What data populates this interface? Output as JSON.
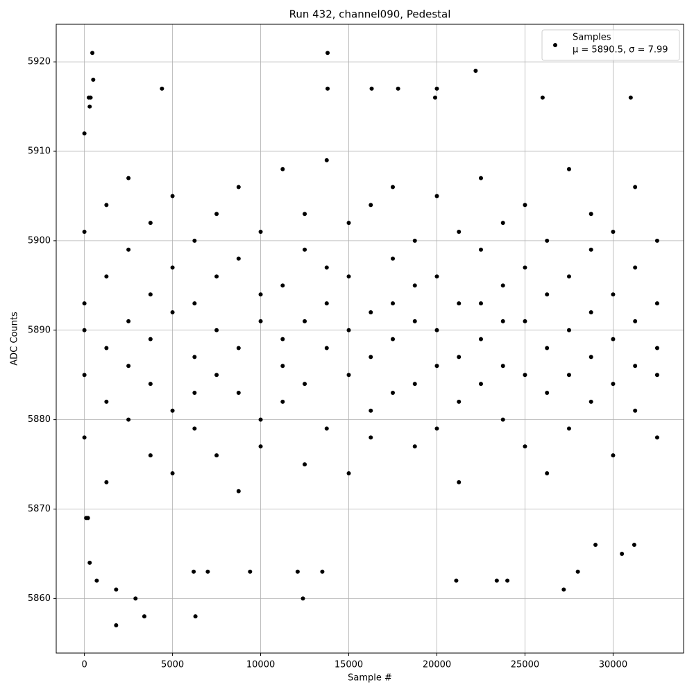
{
  "chart_data": {
    "type": "scatter",
    "title": "Run 432, channel090, Pedestal",
    "x_label": "Sample #",
    "y_label": "ADC Counts",
    "xlim": [
      -1600,
      34000
    ],
    "ylim": [
      5853.9,
      5924.2
    ],
    "xticks": [
      0,
      5000,
      10000,
      15000,
      20000,
      25000,
      30000
    ],
    "yticks": [
      5860,
      5870,
      5880,
      5890,
      5900,
      5910,
      5920
    ],
    "grid": true,
    "legend_position": "upper right",
    "stats_label": "μ = 5890.5, σ = 7.99",
    "series": [
      {
        "name": "Samples",
        "color": "#000000",
        "x": [
          0,
          0,
          0,
          0,
          0,
          1250,
          1250,
          1250,
          1250,
          1250,
          2500,
          2500,
          2500,
          2500,
          2500,
          3750,
          3750,
          3750,
          3750,
          3750,
          5000,
          5000,
          5000,
          5000,
          5000,
          6250,
          6250,
          6250,
          6250,
          6250,
          7500,
          7500,
          7500,
          7500,
          7500,
          8750,
          8750,
          8750,
          8750,
          8750,
          10000,
          10000,
          10000,
          10000,
          10000,
          11250,
          11250,
          11250,
          11250,
          11250,
          12500,
          12500,
          12500,
          12500,
          12500,
          13750,
          13750,
          13750,
          13750,
          13750,
          15000,
          15000,
          15000,
          15000,
          15000,
          16250,
          16250,
          16250,
          16250,
          16250,
          17500,
          17500,
          17500,
          17500,
          17500,
          18750,
          18750,
          18750,
          18750,
          18750,
          20000,
          20000,
          20000,
          20000,
          20000,
          21250,
          21250,
          21250,
          21250,
          21250,
          22500,
          22500,
          22500,
          22500,
          22500,
          23750,
          23750,
          23750,
          23750,
          23750,
          25000,
          25000,
          25000,
          25000,
          25000,
          26250,
          26250,
          26250,
          26250,
          26250,
          27500,
          27500,
          27500,
          27500,
          27500,
          28750,
          28750,
          28750,
          28750,
          28750,
          30000,
          30000,
          30000,
          30000,
          30000,
          31250,
          31250,
          31250,
          31250,
          31250,
          32500,
          32500,
          32500,
          32500,
          32500,
          0,
          100,
          200,
          250,
          300,
          350,
          300,
          450,
          500,
          700,
          1800,
          1800,
          2900,
          3400,
          4400,
          6300,
          6200,
          7000,
          9400,
          12400,
          12100,
          13500,
          13800,
          13800,
          16300,
          17800,
          21100,
          22200,
          23400,
          24000,
          27200,
          28000,
          26000,
          31000,
          20000,
          19900,
          29000,
          30500,
          31200
        ],
        "values": [
          5885,
          5893,
          5901,
          5878,
          5890,
          5888,
          5896,
          5873,
          5904,
          5882,
          5891,
          5880,
          5899,
          5886,
          5907,
          5884,
          5894,
          5876,
          5902,
          5889,
          5892,
          5881,
          5897,
          5874,
          5905,
          5887,
          5900,
          5879,
          5893,
          5883,
          5890,
          5876,
          5903,
          5885,
          5896,
          5883,
          5898,
          5888,
          5906,
          5872,
          5894,
          5880,
          5891,
          5901,
          5877,
          5886,
          5895,
          5882,
          5908,
          5889,
          5891,
          5875,
          5899,
          5884,
          5903,
          5888,
          5897,
          5879,
          5893,
          5909,
          5885,
          5902,
          5890,
          5874,
          5896,
          5892,
          5881,
          5904,
          5887,
          5878,
          5889,
          5898,
          5883,
          5906,
          5893,
          5884,
          5891,
          5900,
          5877,
          5895,
          5890,
          5879,
          5896,
          5886,
          5905,
          5887,
          5901,
          5882,
          5893,
          5873,
          5893,
          5884,
          5899,
          5889,
          5907,
          5886,
          5895,
          5880,
          5902,
          5891,
          5891,
          5877,
          5897,
          5885,
          5904,
          5888,
          5900,
          5883,
          5894,
          5874,
          5885,
          5896,
          5890,
          5879,
          5908,
          5892,
          5882,
          5899,
          5887,
          5903,
          5889,
          5876,
          5894,
          5901,
          5884,
          5886,
          5897,
          5881,
          5891,
          5906,
          5893,
          5878,
          5888,
          5900,
          5885,
          5912,
          5869,
          5869,
          5916,
          5915,
          5916,
          5864,
          5921,
          5918,
          5862,
          5857,
          5861,
          5860,
          5858,
          5917,
          5858,
          5863,
          5863,
          5863,
          5860,
          5863,
          5863,
          5921,
          5917,
          5917,
          5917,
          5862,
          5919,
          5862,
          5862,
          5861,
          5863,
          5916,
          5916,
          5917,
          5916,
          5866,
          5865,
          5866
        ]
      }
    ]
  }
}
